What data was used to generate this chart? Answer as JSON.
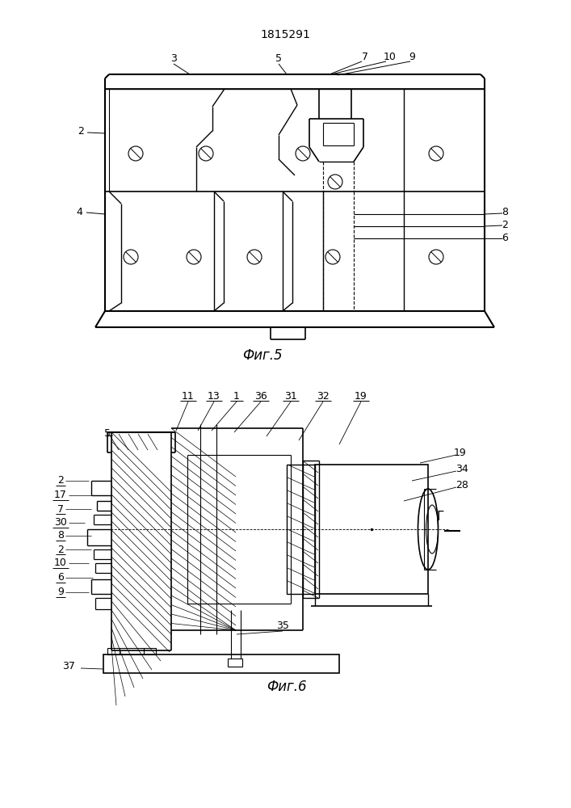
{
  "title": "1815291",
  "fig5_caption": "Фиг.5",
  "fig6_caption": "Фиг.6",
  "bg_color": "#ffffff",
  "line_color": "#000000"
}
